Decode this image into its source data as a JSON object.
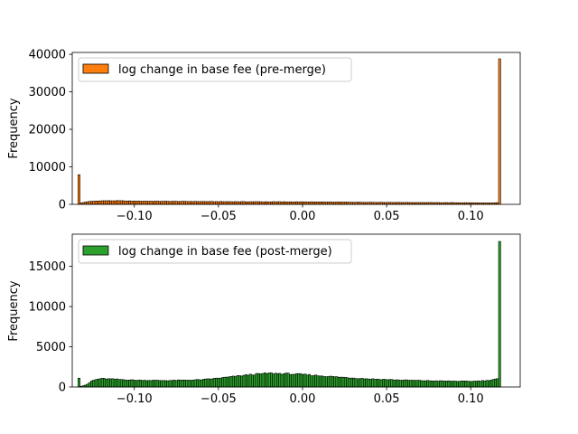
{
  "colors": {
    "bar_edge": "#000000",
    "axes": "#000000",
    "legend_border": "#cccccc"
  },
  "chart_data": [
    {
      "type": "bar",
      "legend": "log change in base fee (pre-merge)",
      "legend_position": "top-left",
      "color": "#ff7f0e",
      "ylabel": "Frequency",
      "xlim": [
        -0.1369,
        0.1294
      ],
      "ylim": [
        0,
        40500
      ],
      "xticks": [
        -0.1,
        -0.05,
        0.0,
        0.05,
        0.1
      ],
      "xtick_labels": [
        "−0.10",
        "−0.05",
        "0.00",
        "0.05",
        "0.10"
      ],
      "yticks": [
        0,
        10000,
        20000,
        30000,
        40000
      ],
      "ytick_labels": [
        "0",
        "10000",
        "20000",
        "30000",
        "40000"
      ],
      "grid": false,
      "bin_range": [
        -0.1335,
        0.1178
      ],
      "bin_count": 200,
      "profile": [
        [
          -0.1335,
          7900
        ],
        [
          -0.1322,
          300
        ],
        [
          -0.128,
          700
        ],
        [
          -0.12,
          950
        ],
        [
          -0.11,
          950
        ],
        [
          -0.1,
          850
        ],
        [
          -0.05,
          720
        ],
        [
          0.0,
          650
        ],
        [
          0.05,
          520
        ],
        [
          0.1,
          420
        ],
        [
          0.112,
          350
        ],
        [
          0.1165,
          450
        ],
        [
          0.1178,
          38800
        ]
      ]
    },
    {
      "type": "bar",
      "legend": "log change in base fee (post-merge)",
      "legend_position": "top-left",
      "color": "#2ca02c",
      "ylabel": "Frequency",
      "xlim": [
        -0.1369,
        0.1294
      ],
      "ylim": [
        0,
        19000
      ],
      "xticks": [
        -0.1,
        -0.05,
        0.0,
        0.05,
        0.1
      ],
      "xtick_labels": [
        "−0.10",
        "−0.05",
        "0.00",
        "0.05",
        "0.10"
      ],
      "yticks": [
        0,
        5000,
        10000,
        15000
      ],
      "ytick_labels": [
        "0",
        "5000",
        "10000",
        "15000"
      ],
      "grid": false,
      "bin_range": [
        -0.1335,
        0.1178
      ],
      "bin_count": 200,
      "profile": [
        [
          -0.1335,
          1100
        ],
        [
          -0.1322,
          50
        ],
        [
          -0.128,
          300
        ],
        [
          -0.125,
          800
        ],
        [
          -0.12,
          1050
        ],
        [
          -0.11,
          950
        ],
        [
          -0.1,
          850
        ],
        [
          -0.08,
          800
        ],
        [
          -0.06,
          900
        ],
        [
          -0.045,
          1200
        ],
        [
          -0.03,
          1550
        ],
        [
          -0.02,
          1700
        ],
        [
          -0.01,
          1650
        ],
        [
          0.0,
          1550
        ],
        [
          0.02,
          1250
        ],
        [
          0.04,
          1000
        ],
        [
          0.06,
          850
        ],
        [
          0.08,
          750
        ],
        [
          0.1,
          700
        ],
        [
          0.11,
          800
        ],
        [
          0.115,
          1000
        ],
        [
          0.1178,
          18100
        ]
      ]
    }
  ]
}
